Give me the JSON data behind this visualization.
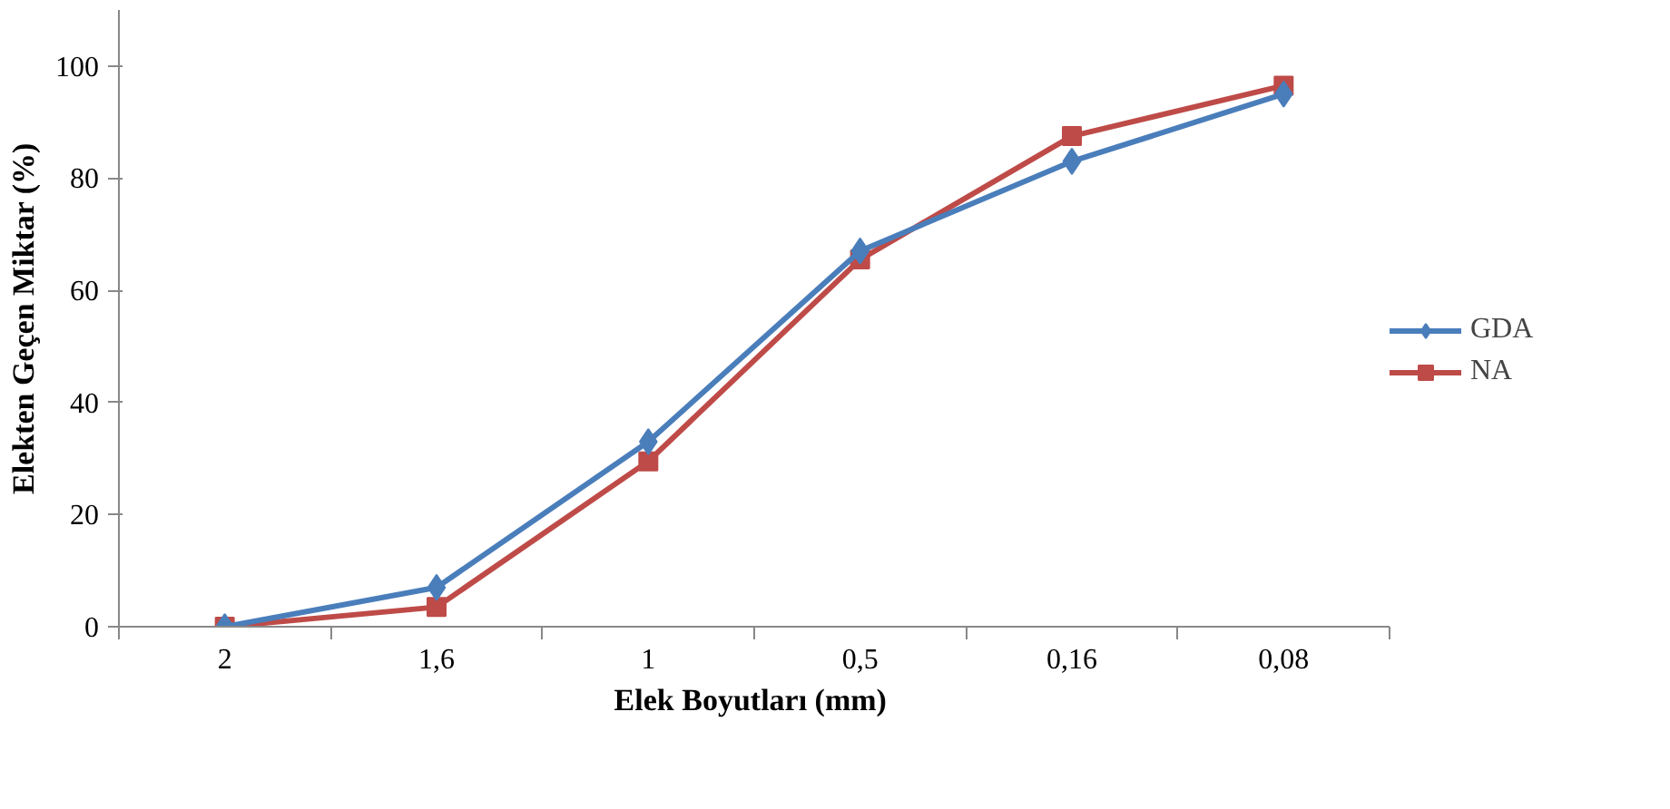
{
  "chart_data": {
    "type": "line",
    "xlabel": "Elek Boyutları  (mm)",
    "ylabel": "Elekten Geçen Miktar (%)",
    "categories": [
      "2",
      "1,6",
      "1",
      "0,5",
      "0,16",
      "0,08"
    ],
    "ylim": [
      0,
      110
    ],
    "yticks": [
      0,
      20,
      40,
      60,
      80,
      100
    ],
    "grid": false,
    "legend": "right",
    "line_style": "solid",
    "series": [
      {
        "name": "GDA",
        "color": "#4a7ebb",
        "marker": "diamond",
        "values": [
          0,
          7,
          33,
          67,
          83,
          95
        ]
      },
      {
        "name": "NA",
        "color": "#be4b48",
        "marker": "square",
        "values": [
          0,
          3.5,
          29.5,
          65.5,
          87.5,
          96.5
        ]
      }
    ]
  }
}
